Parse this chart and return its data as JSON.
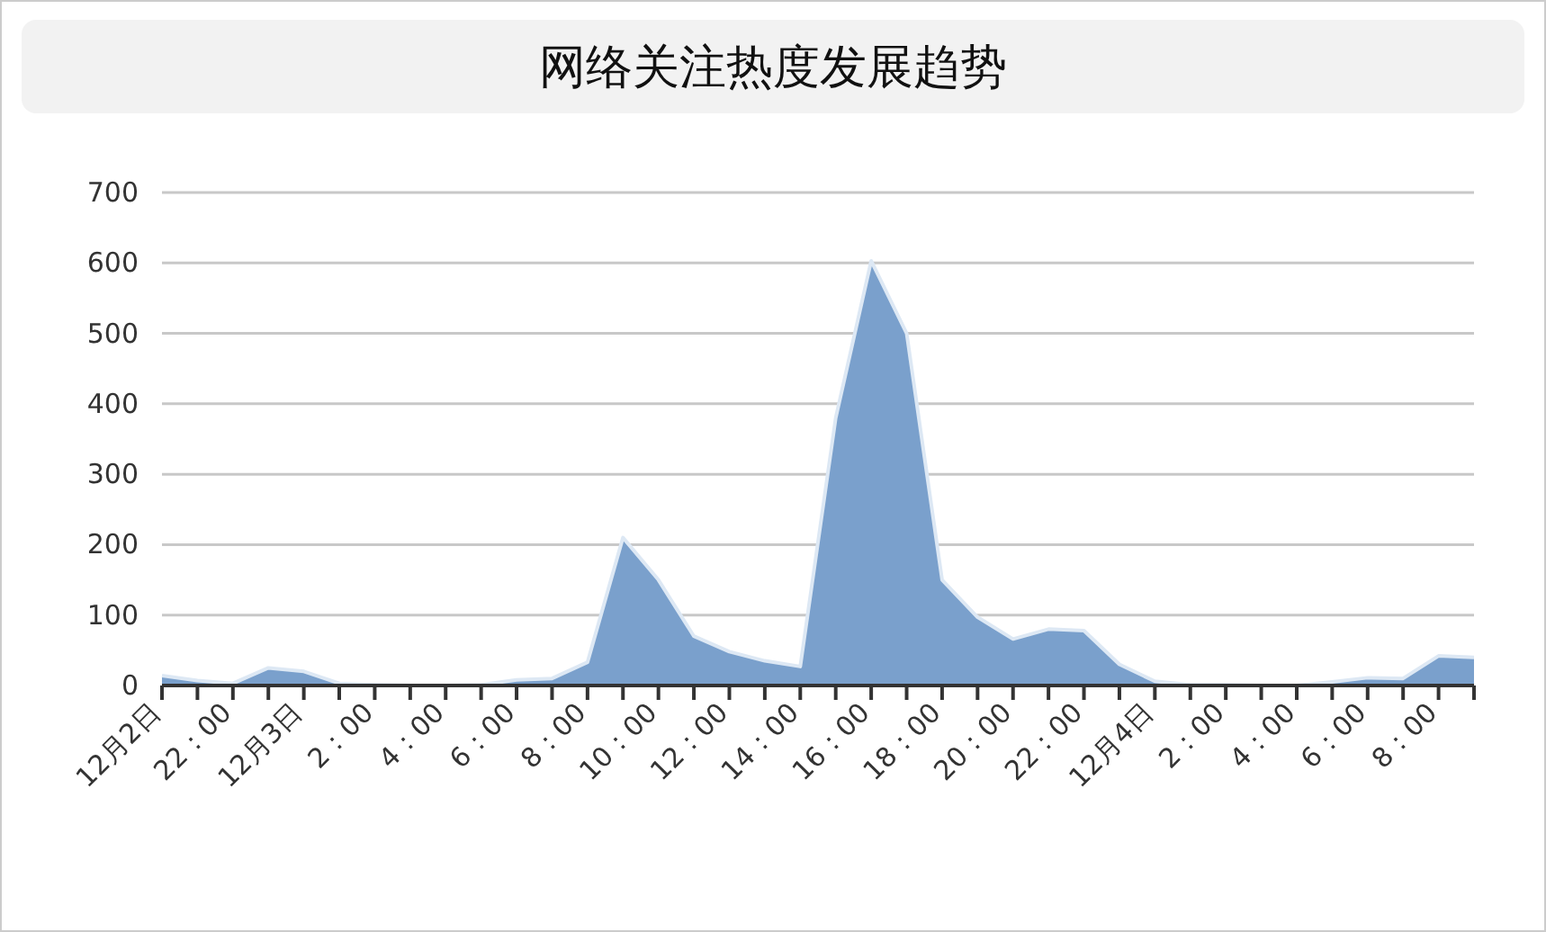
{
  "chart_data": {
    "type": "area",
    "title": "网络关注热度发展趋势",
    "categories": [
      "12月2日",
      null,
      "22：00",
      null,
      "12月3日",
      null,
      "2：00",
      null,
      "4：00",
      null,
      "6：00",
      null,
      "8：00",
      null,
      "10：00",
      null,
      "12：00",
      null,
      "14：00",
      null,
      "16：00",
      null,
      "18：00",
      null,
      "20：00",
      null,
      "22：00",
      null,
      "12月4日",
      null,
      "2：00",
      null,
      "4：00",
      null,
      "6：00",
      null,
      "8：00",
      null
    ],
    "values": [
      14,
      7,
      3,
      25,
      20,
      3,
      1,
      0,
      0,
      1,
      8,
      10,
      33,
      210,
      150,
      70,
      48,
      35,
      27,
      380,
      603,
      500,
      150,
      97,
      66,
      80,
      78,
      30,
      6,
      1,
      1,
      0,
      0,
      5,
      11,
      10,
      42,
      40
    ],
    "color": "#7aa0cc",
    "ylim": [
      0,
      700
    ],
    "yticks": [
      0,
      100,
      200,
      300,
      400,
      500,
      600,
      700
    ],
    "grid": "y"
  }
}
